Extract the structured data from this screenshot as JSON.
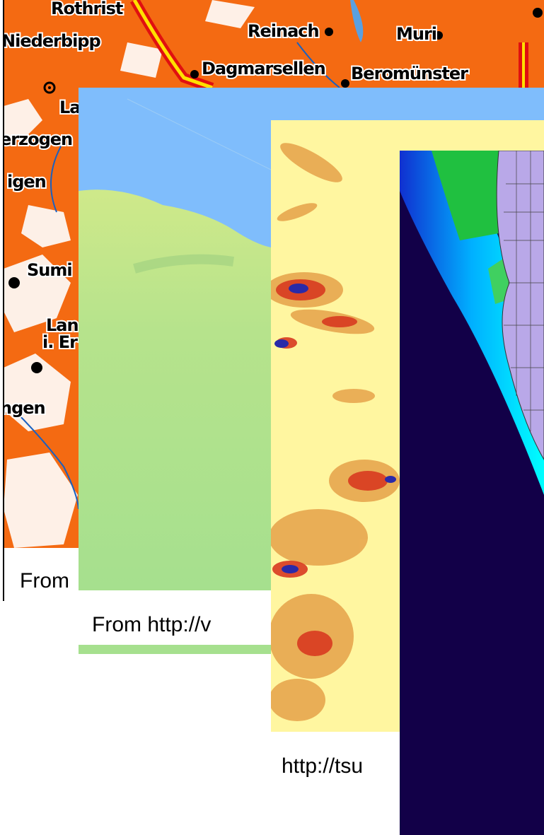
{
  "panels": [
    {
      "caption": "From",
      "labels": [
        "Rothrist",
        "Niederbipp",
        "Reinach",
        "Dagmarsellen",
        "Muri",
        "Beromünster",
        "La",
        "erzogen",
        "igen",
        "Sumi",
        "Lan",
        "i. Er",
        "ngen"
      ]
    },
    {
      "caption": "From http://v"
    },
    {
      "caption": "http://tsu"
    }
  ]
}
